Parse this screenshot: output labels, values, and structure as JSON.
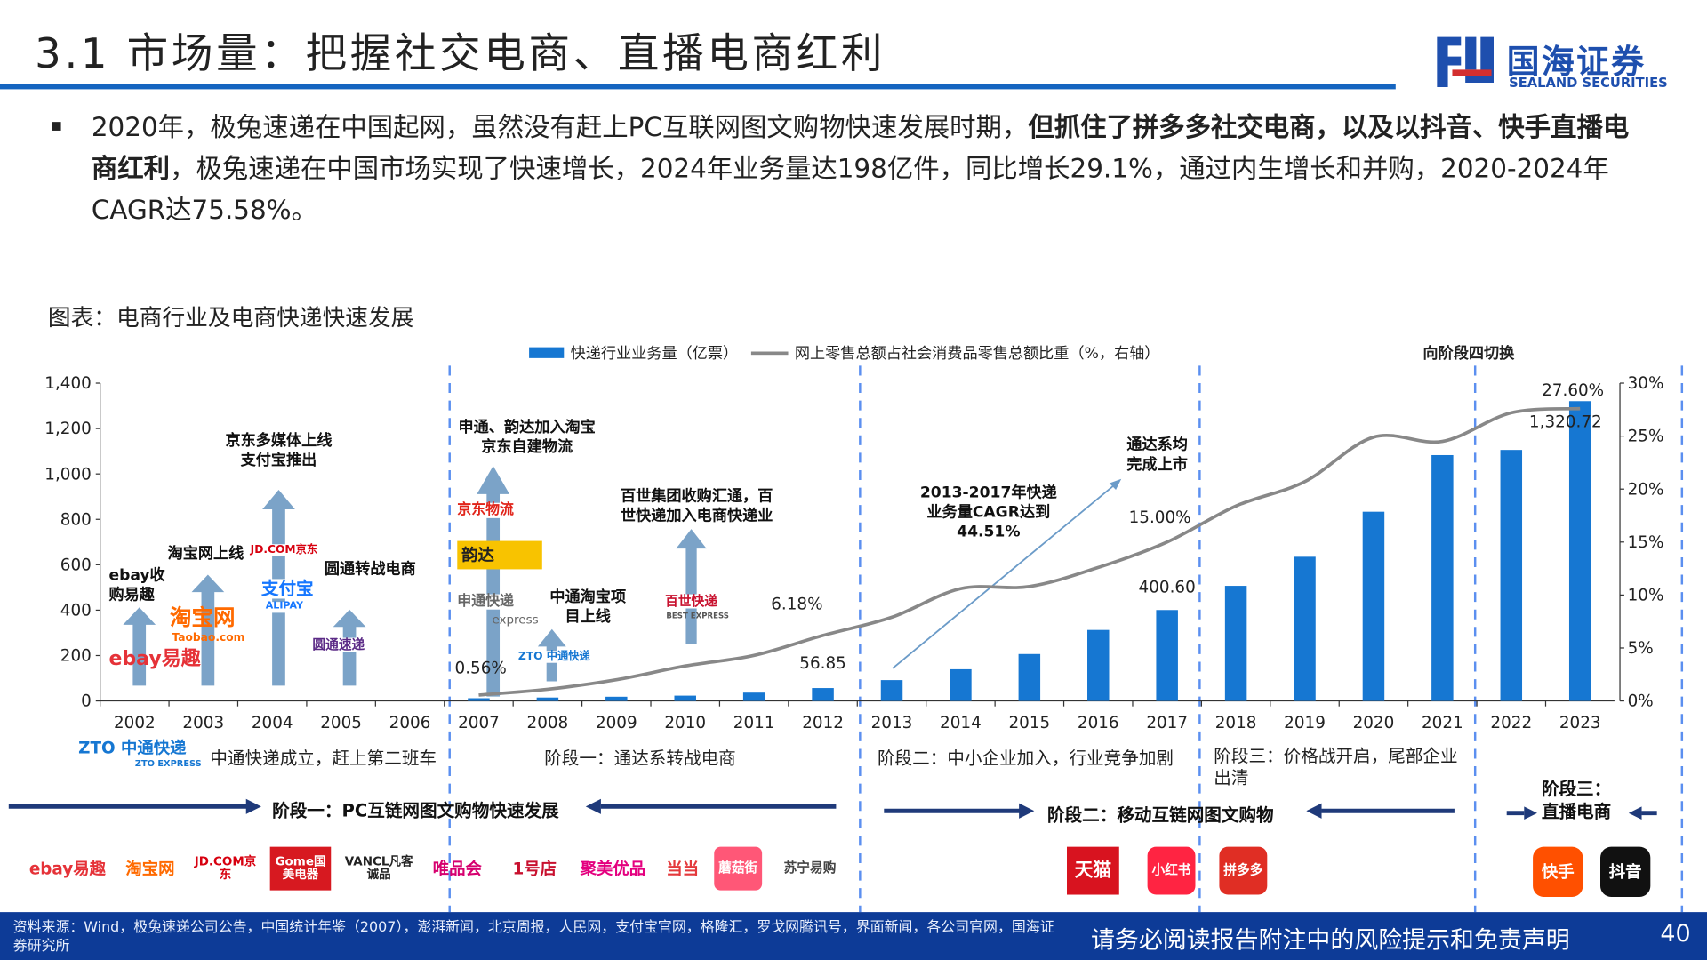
{
  "header": {
    "title": "3.1 市场量：把握社交电商、直播电商红利",
    "brand_cn": "国海证券",
    "brand_en": "SEALAND SECURITIES",
    "accent": "#1565c0"
  },
  "bullet": {
    "part1": "2020年，极兔速递在中国起网，虽然没有赶上PC互联网图文购物快速发展时期，",
    "bold": "但抓住了拼多多社交电商，以及以抖音、快手直播电商红利",
    "part2": "，极兔速递在中国市场实现了快速增长，2024年业务量达198亿件，同比增长29.1%，通过内生增长和并购，2020-2024年CAGR达75.58%。"
  },
  "figure": {
    "caption": "图表：电商行业及电商快递快速发展",
    "switch_label": "向阶段四切换"
  },
  "chart_data": {
    "type": "bar+line",
    "categories": [
      "2002",
      "2003",
      "2004",
      "2005",
      "2006",
      "2007",
      "2008",
      "2009",
      "2010",
      "2011",
      "2012",
      "2013",
      "2014",
      "2015",
      "2016",
      "2017",
      "2018",
      "2019",
      "2020",
      "2021",
      "2022",
      "2023"
    ],
    "series": [
      {
        "name": "快递行业业务量（亿票）",
        "type": "bar",
        "axis": "left",
        "color": "#1677d2",
        "values": [
          null,
          null,
          null,
          null,
          null,
          12.0,
          15.1,
          18.6,
          23.4,
          36.7,
          56.85,
          91.9,
          139.6,
          206.7,
          312.8,
          400.6,
          507.1,
          635.2,
          833.6,
          1083.0,
          1105.8,
          1320.72
        ]
      },
      {
        "name": "网上零售总额占社会消费品零售总额比重（%，右轴）",
        "type": "line",
        "axis": "right",
        "color": "#888888",
        "values": [
          null,
          null,
          null,
          null,
          null,
          0.56,
          1.1,
          2.0,
          3.3,
          4.3,
          6.18,
          7.9,
          10.6,
          10.8,
          12.6,
          15.0,
          18.4,
          20.7,
          24.9,
          24.5,
          27.2,
          27.6
        ]
      }
    ],
    "data_labels": [
      {
        "category": "2007",
        "text": "0.56%"
      },
      {
        "category": "2012",
        "text": "6.18%"
      },
      {
        "category": "2012",
        "text": "56.85"
      },
      {
        "category": "2017",
        "text": "15.00%"
      },
      {
        "category": "2017",
        "text": "400.60"
      },
      {
        "category": "2023",
        "text": "27.60%"
      },
      {
        "category": "2023",
        "text": "1,320.72"
      }
    ],
    "y_left": {
      "min": 0,
      "max": 1400,
      "ticks": [
        "0",
        "200",
        "400",
        "600",
        "800",
        "1,000",
        "1,200",
        "1,400"
      ]
    },
    "y_right": {
      "min": 0,
      "max": 30,
      "ticks": [
        "0%",
        "5%",
        "10%",
        "15%",
        "20%",
        "25%",
        "30%"
      ]
    },
    "grid": false,
    "legend": "top"
  },
  "annotations": {
    "ebay": "ebay收购易趣",
    "taobao": "淘宝网上线",
    "jd_alipay": "京东多媒体上线\n支付宝推出",
    "yto": "圆通转战电商",
    "sto_yunda": "申通、韵达加入淘宝\n京东自建物流",
    "zto_taobao": "中通淘宝项\n目上线",
    "best": "百世集团收购汇通，百\n世快递加入电商快递业",
    "cagr": "2013-2017年快递\n业务量CAGR达到\n44.51%",
    "tongda": "通达系均\n完成上市"
  },
  "stages": {
    "zto_founded": "中通快递成立，赶上第二班车",
    "stage1": "阶段一：通达系转战电商",
    "stage2": "阶段二：中小企业加入，行业竞争加剧",
    "stage3": "阶段三：价格战开启，尾部企业出清"
  },
  "phases": {
    "p1": "阶段一：PC互链网图文购物快速发展",
    "p2": "阶段二：移动互链网图文购物",
    "p3": "阶段三：\n直播电商"
  },
  "logos": {
    "chart": [
      "ebay易趣",
      "淘宝网",
      "Taobao.com",
      "支付宝",
      "ALIPAY",
      "JD.COM京东",
      "圆通速递",
      "京东物流",
      "韵达",
      "申通快递",
      "express",
      "中通快递",
      "百世快递",
      "BEST EXPRESS",
      "ZTO 中通快递",
      "ZTO EXPRESS"
    ],
    "bottom": [
      "ebay易趣",
      "淘宝网",
      "JD.COM京东",
      "Gome国美电器",
      "VANCL凡客诚品",
      "唯品会",
      "1号店",
      "聚美优品",
      "当当",
      "蘑菇街",
      "苏宁易购",
      "天猫",
      "小红书",
      "拼多多",
      "快手",
      "抖音"
    ]
  },
  "footer": {
    "source": "资料来源：Wind，极兔速递公司公告，中国统计年鉴（2007），澎湃新闻，北京周报，人民网，支付宝官网，格隆汇，罗戈网腾讯号，界面新闻，各公司官网，国海证券研究所",
    "disclaimer": "请务必阅读报告附注中的风险提示和免责声明",
    "page": "40",
    "bg": "#0d3b97"
  }
}
